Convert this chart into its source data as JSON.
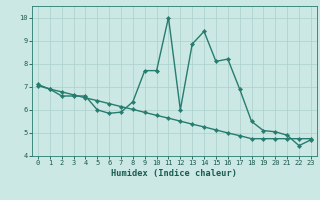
{
  "xlabel": "Humidex (Indice chaleur)",
  "x_values": [
    0,
    1,
    2,
    3,
    4,
    5,
    6,
    7,
    8,
    9,
    10,
    11,
    12,
    13,
    14,
    15,
    16,
    17,
    18,
    19,
    20,
    21,
    22,
    23
  ],
  "y_main": [
    7.1,
    6.9,
    6.6,
    6.6,
    6.6,
    6.0,
    5.85,
    5.9,
    6.35,
    7.7,
    7.7,
    10.0,
    6.0,
    8.85,
    9.4,
    8.1,
    8.2,
    6.9,
    5.5,
    5.1,
    5.05,
    4.9,
    4.45,
    4.7
  ],
  "y_trend": [
    7.05,
    6.9,
    6.78,
    6.65,
    6.52,
    6.4,
    6.27,
    6.14,
    6.02,
    5.89,
    5.76,
    5.64,
    5.51,
    5.38,
    5.26,
    5.13,
    5.0,
    4.88,
    4.75,
    4.75,
    4.75,
    4.75,
    4.75,
    4.75
  ],
  "ylim": [
    4,
    10.5
  ],
  "xlim": [
    -0.5,
    23.5
  ],
  "yticks": [
    4,
    5,
    6,
    7,
    8,
    9,
    10
  ],
  "xticks": [
    0,
    1,
    2,
    3,
    4,
    5,
    6,
    7,
    8,
    9,
    10,
    11,
    12,
    13,
    14,
    15,
    16,
    17,
    18,
    19,
    20,
    21,
    22,
    23
  ],
  "line_color": "#267c6e",
  "bg_color": "#cce8e4",
  "grid_color": "#aad0cc",
  "marker": "D",
  "marker_size": 2.2,
  "line_width": 1.0,
  "tick_color": "#1a5a50",
  "xlabel_color": "#1a5a50",
  "tick_fontsize": 5.0,
  "xlabel_fontsize": 6.2
}
